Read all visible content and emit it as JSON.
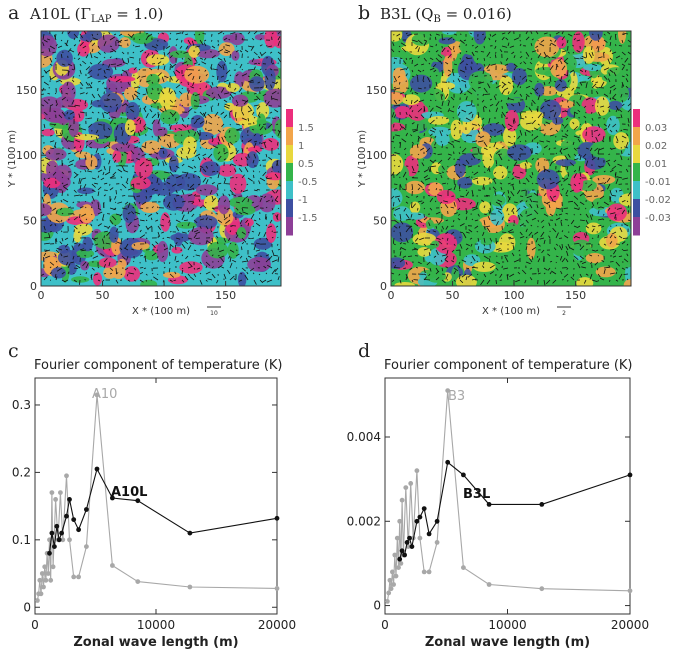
{
  "panels": {
    "a": {
      "letter": "a",
      "title_prefix": "A10L (",
      "gamma_symbol": "Γ",
      "gamma_subscript": "LAP",
      "title_suffix": " = 1.0)"
    },
    "b": {
      "letter": "b",
      "title_prefix": "B3L (Q",
      "q_subscript": "B",
      "title_suffix": " = 0.016)"
    },
    "c": {
      "letter": "c"
    },
    "d": {
      "letter": "d"
    }
  },
  "chart_data": [
    {
      "id": "a",
      "type": "heatmap",
      "xlabel": "X * (100 m)",
      "ylabel": "Y * (100 m)",
      "xticks": [
        "0",
        "50",
        "100",
        "150"
      ],
      "yticks": [
        "0",
        "50",
        "100",
        "150"
      ],
      "xlim": [
        0,
        195
      ],
      "ylim": [
        0,
        195
      ],
      "vector_scale_label": "10",
      "colorbar_labels": [
        "1.5",
        "1",
        "0.5",
        "-0.5",
        "-1",
        "-1.5"
      ],
      "colorbar_colors": [
        "#ec2f7c",
        "#f2a54a",
        "#e8d83e",
        "#34b44a",
        "#3ec0c8",
        "#3d4fa1",
        "#8d3f97"
      ]
    },
    {
      "id": "b",
      "type": "heatmap",
      "xlabel": "X * (100 m)",
      "ylabel": "Y * (100 m)",
      "xticks": [
        "0",
        "50",
        "100",
        "150"
      ],
      "yticks": [
        "0",
        "50",
        "100",
        "150"
      ],
      "xlim": [
        0,
        195
      ],
      "ylim": [
        0,
        195
      ],
      "vector_scale_label": "2",
      "colorbar_labels": [
        "0.03",
        "0.02",
        "0.01",
        "-0.01",
        "-0.02",
        "-0.03"
      ],
      "colorbar_colors": [
        "#ec2f7c",
        "#f2a54a",
        "#e8d83e",
        "#34b44a",
        "#3ec0c8",
        "#3d4fa1",
        "#8d3f97"
      ]
    },
    {
      "id": "c",
      "type": "line",
      "title": "Fourier component of temperature (K)",
      "xlabel": "Zonal wave length (m)",
      "ylabel": "",
      "xlim": [
        0,
        20000
      ],
      "ylim": [
        -0.01,
        0.34
      ],
      "xticks": [
        0,
        10000,
        20000
      ],
      "xtick_labels": [
        "0",
        "10000",
        "20000"
      ],
      "yticks": [
        0,
        0.1,
        0.2,
        0.3
      ],
      "ytick_labels": [
        "0",
        "0.1",
        "0.2",
        "0.3"
      ],
      "series": [
        {
          "name": "A10",
          "color": "#a8a8a8",
          "x": [
            200,
            300,
            400,
            500,
            600,
            700,
            800,
            900,
            1000,
            1100,
            1200,
            1300,
            1400,
            1500,
            1700,
            1900,
            2100,
            2300,
            2600,
            2850,
            3200,
            3600,
            4250,
            5120,
            6400,
            8500,
            12800,
            20000
          ],
          "y": [
            0.01,
            0.02,
            0.04,
            0.02,
            0.05,
            0.03,
            0.06,
            0.04,
            0.08,
            0.05,
            0.1,
            0.04,
            0.17,
            0.06,
            0.16,
            0.1,
            0.17,
            0.1,
            0.195,
            0.1,
            0.045,
            0.045,
            0.09,
            0.315,
            0.062,
            0.038,
            0.03,
            0.028
          ]
        },
        {
          "name": "A10L",
          "color": "#111111",
          "x": [
            1200,
            1400,
            1600,
            1800,
            2000,
            2200,
            2600,
            2850,
            3200,
            3600,
            4250,
            5120,
            6400,
            8500,
            12800,
            20000
          ],
          "y": [
            0.08,
            0.11,
            0.09,
            0.12,
            0.1,
            0.11,
            0.135,
            0.16,
            0.13,
            0.115,
            0.145,
            0.205,
            0.162,
            0.158,
            0.11,
            0.132
          ]
        }
      ]
    },
    {
      "id": "d",
      "type": "line",
      "title": "Fourier component of temperature (K)",
      "xlabel": "Zonal wave length (m)",
      "ylabel": "",
      "xlim": [
        0,
        20000
      ],
      "ylim": [
        -0.0002,
        0.0054
      ],
      "xticks": [
        0,
        10000,
        20000
      ],
      "xtick_labels": [
        "0",
        "10000",
        "20000"
      ],
      "yticks": [
        0,
        0.002,
        0.004
      ],
      "ytick_labels": [
        "0",
        "0.002",
        "0.004"
      ],
      "series": [
        {
          "name": "B3",
          "color": "#a8a8a8",
          "x": [
            200,
            300,
            400,
            500,
            600,
            700,
            800,
            900,
            1000,
            1100,
            1200,
            1300,
            1400,
            1500,
            1700,
            1900,
            2100,
            2300,
            2600,
            2850,
            3200,
            3600,
            4250,
            5120,
            6400,
            8500,
            12800,
            20000
          ],
          "y": [
            0.0001,
            0.0003,
            0.0006,
            0.0004,
            0.0008,
            0.0005,
            0.0012,
            0.0007,
            0.0016,
            0.0009,
            0.002,
            0.001,
            0.0025,
            0.0012,
            0.0028,
            0.0014,
            0.0029,
            0.0016,
            0.0032,
            0.0016,
            0.0008,
            0.0008,
            0.0015,
            0.0051,
            0.0009,
            0.0005,
            0.0004,
            0.00035
          ]
        },
        {
          "name": "B3L",
          "color": "#111111",
          "x": [
            1200,
            1400,
            1600,
            1800,
            2000,
            2200,
            2600,
            2850,
            3200,
            3600,
            4250,
            5120,
            6400,
            8500,
            12800,
            20000
          ],
          "y": [
            0.0011,
            0.0013,
            0.0012,
            0.0015,
            0.0016,
            0.0014,
            0.002,
            0.0021,
            0.0023,
            0.0017,
            0.002,
            0.0034,
            0.0031,
            0.0024,
            0.0024,
            0.0031
          ]
        }
      ]
    }
  ]
}
